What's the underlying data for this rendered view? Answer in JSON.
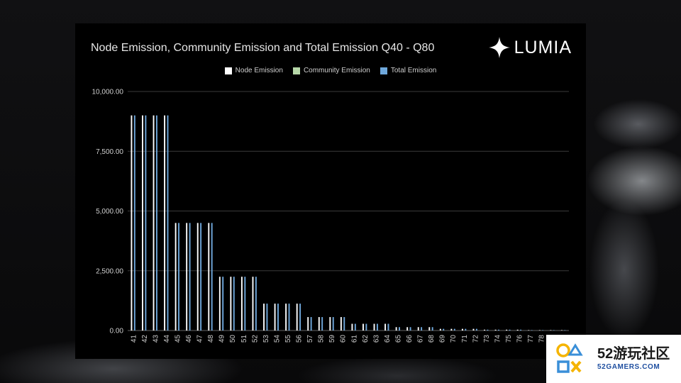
{
  "brand": {
    "name": "LUMIA",
    "logo_icon": "four-point-star-icon"
  },
  "watermark": {
    "brand": "52游玩社区",
    "domain": "52GAMERS.COM"
  },
  "colors": {
    "node": "#ffffff",
    "community": "#b6d7a8",
    "total": "#6fa8dc",
    "grid": "#3a3a3a",
    "axis_text": "#cfcfcf"
  },
  "chart_data": {
    "type": "bar",
    "title": "Node Emission, Community Emission and Total Emission Q40 - Q80",
    "xlabel": "",
    "ylabel": "",
    "ylim": [
      0,
      10000
    ],
    "yticks": [
      "0.00",
      "2,500.00",
      "5,000.00",
      "7,500.00",
      "10,000.00"
    ],
    "ytick_values": [
      0,
      2500,
      5000,
      7500,
      10000
    ],
    "grid": true,
    "legend_position": "top",
    "categories": [
      "41",
      "42",
      "43",
      "44",
      "45",
      "46",
      "47",
      "48",
      "49",
      "50",
      "51",
      "52",
      "53",
      "54",
      "55",
      "56",
      "57",
      "58",
      "59",
      "60",
      "61",
      "62",
      "63",
      "64",
      "65",
      "66",
      "67",
      "68",
      "69",
      "70",
      "71",
      "72",
      "73",
      "74",
      "75",
      "76",
      "77",
      "78",
      "79",
      "80"
    ],
    "series": [
      {
        "name": "Node Emission",
        "values": [
          9000,
          9000,
          9000,
          9000,
          4500,
          4500,
          4500,
          4500,
          2250,
          2250,
          2250,
          2250,
          1125,
          1125,
          1125,
          1125,
          562.5,
          562.5,
          562.5,
          562.5,
          281.25,
          281.25,
          281.25,
          281.25,
          140.63,
          140.63,
          140.63,
          140.63,
          70.31,
          70.31,
          70.31,
          70.31,
          35.16,
          35.16,
          35.16,
          35.16,
          17.58,
          17.58,
          17.58,
          17.58
        ]
      },
      {
        "name": "Community Emission",
        "values": [
          0,
          0,
          0,
          0,
          0,
          0,
          0,
          0,
          0,
          0,
          0,
          0,
          0,
          0,
          0,
          0,
          0,
          0,
          0,
          0,
          0,
          0,
          0,
          0,
          0,
          0,
          0,
          0,
          0,
          0,
          0,
          0,
          0,
          0,
          0,
          0,
          0,
          0,
          0,
          0
        ]
      },
      {
        "name": "Total Emission",
        "values": [
          9000,
          9000,
          9000,
          9000,
          4500,
          4500,
          4500,
          4500,
          2250,
          2250,
          2250,
          2250,
          1125,
          1125,
          1125,
          1125,
          562.5,
          562.5,
          562.5,
          562.5,
          281.25,
          281.25,
          281.25,
          281.25,
          140.63,
          140.63,
          140.63,
          140.63,
          70.31,
          70.31,
          70.31,
          70.31,
          35.16,
          35.16,
          35.16,
          35.16,
          17.58,
          17.58,
          17.58,
          17.58
        ]
      }
    ]
  }
}
